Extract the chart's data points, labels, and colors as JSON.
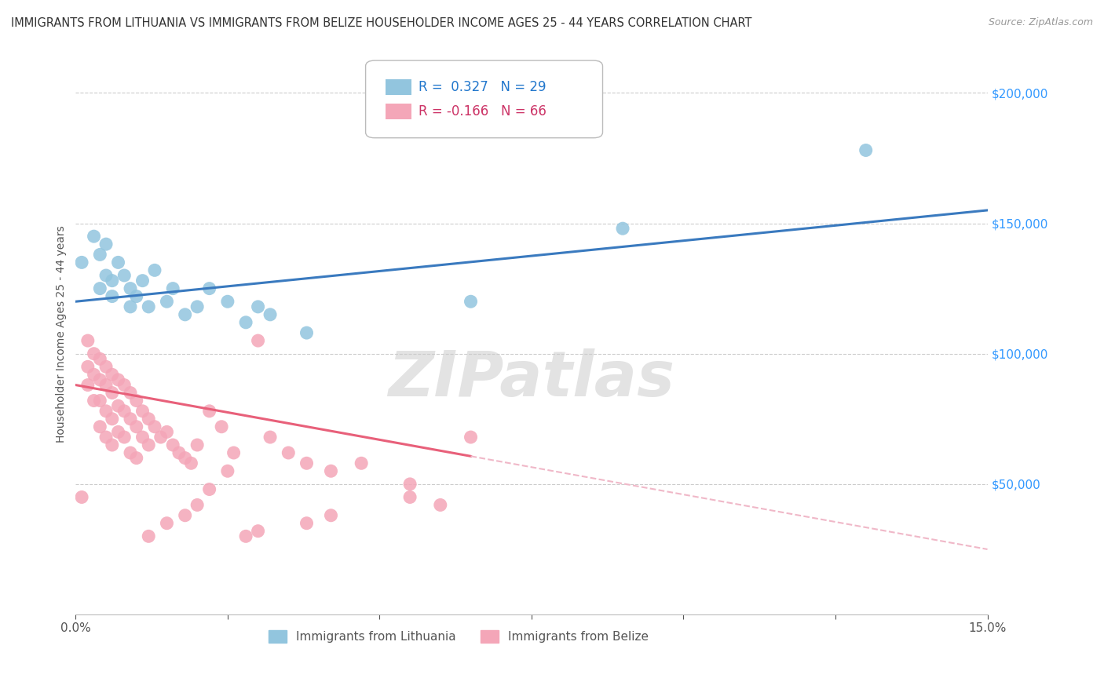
{
  "title": "IMMIGRANTS FROM LITHUANIA VS IMMIGRANTS FROM BELIZE HOUSEHOLDER INCOME AGES 25 - 44 YEARS CORRELATION CHART",
  "source": "Source: ZipAtlas.com",
  "ylabel": "Householder Income Ages 25 - 44 years",
  "xlim": [
    0.0,
    0.15
  ],
  "ylim": [
    0,
    215000
  ],
  "xticks": [
    0.0,
    0.025,
    0.05,
    0.075,
    0.1,
    0.125,
    0.15
  ],
  "xtick_labels": [
    "0.0%",
    "",
    "",
    "",
    "",
    "",
    "15.0%"
  ],
  "ytick_labels": [
    "$50,000",
    "$100,000",
    "$150,000",
    "$200,000"
  ],
  "ytick_values": [
    50000,
    100000,
    150000,
    200000
  ],
  "watermark": "ZIPatlas",
  "legend_entries": [
    {
      "label": "R =  0.327   N = 29",
      "color": "#92c5de"
    },
    {
      "label": "R = -0.166   N = 66",
      "color": "#f4a6b8"
    }
  ],
  "lithuania_color": "#92c5de",
  "belize_color": "#f4a6b8",
  "lithuania_line_color": "#3a7abf",
  "belize_line_color": "#e8607a",
  "belize_dash_color": "#f0b8c8",
  "background_color": "#ffffff",
  "grid_color": "#cccccc",
  "lithuania_points_x": [
    0.001,
    0.003,
    0.004,
    0.004,
    0.005,
    0.005,
    0.006,
    0.006,
    0.007,
    0.008,
    0.009,
    0.009,
    0.01,
    0.011,
    0.012,
    0.013,
    0.015,
    0.016,
    0.018,
    0.02,
    0.022,
    0.025,
    0.028,
    0.03,
    0.032,
    0.038,
    0.065,
    0.09,
    0.13
  ],
  "lithuania_points_y": [
    135000,
    145000,
    138000,
    125000,
    142000,
    130000,
    128000,
    122000,
    135000,
    130000,
    118000,
    125000,
    122000,
    128000,
    118000,
    132000,
    120000,
    125000,
    115000,
    118000,
    125000,
    120000,
    112000,
    118000,
    115000,
    108000,
    120000,
    148000,
    178000
  ],
  "belize_points_x": [
    0.001,
    0.002,
    0.002,
    0.002,
    0.003,
    0.003,
    0.003,
    0.004,
    0.004,
    0.004,
    0.004,
    0.005,
    0.005,
    0.005,
    0.005,
    0.006,
    0.006,
    0.006,
    0.006,
    0.007,
    0.007,
    0.007,
    0.008,
    0.008,
    0.008,
    0.009,
    0.009,
    0.009,
    0.01,
    0.01,
    0.01,
    0.011,
    0.011,
    0.012,
    0.012,
    0.013,
    0.014,
    0.015,
    0.016,
    0.017,
    0.018,
    0.019,
    0.02,
    0.022,
    0.024,
    0.026,
    0.03,
    0.032,
    0.035,
    0.038,
    0.042,
    0.047,
    0.055,
    0.065,
    0.055,
    0.06,
    0.042,
    0.038,
    0.03,
    0.028,
    0.025,
    0.022,
    0.02,
    0.018,
    0.015,
    0.012
  ],
  "belize_points_y": [
    45000,
    105000,
    95000,
    88000,
    100000,
    92000,
    82000,
    98000,
    90000,
    82000,
    72000,
    95000,
    88000,
    78000,
    68000,
    92000,
    85000,
    75000,
    65000,
    90000,
    80000,
    70000,
    88000,
    78000,
    68000,
    85000,
    75000,
    62000,
    82000,
    72000,
    60000,
    78000,
    68000,
    75000,
    65000,
    72000,
    68000,
    70000,
    65000,
    62000,
    60000,
    58000,
    65000,
    78000,
    72000,
    62000,
    105000,
    68000,
    62000,
    58000,
    55000,
    58000,
    50000,
    68000,
    45000,
    42000,
    38000,
    35000,
    32000,
    30000,
    55000,
    48000,
    42000,
    38000,
    35000,
    30000
  ]
}
